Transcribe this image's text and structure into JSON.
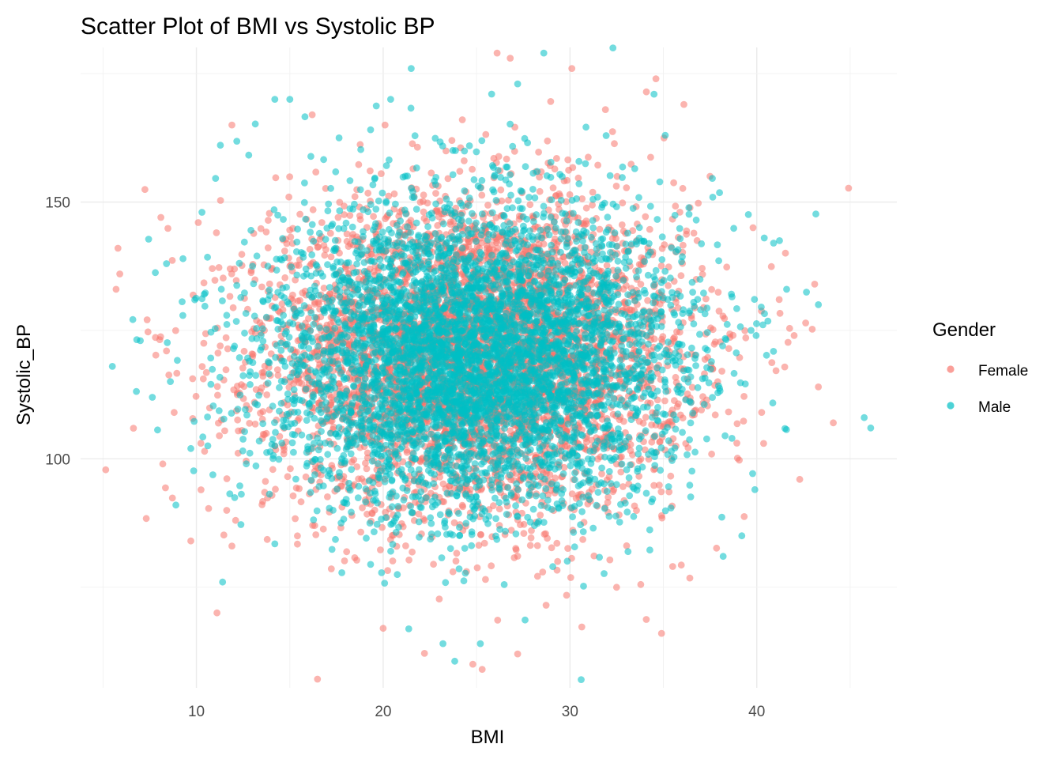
{
  "chart_data": {
    "type": "scatter",
    "title": "Scatter Plot of BMI vs Systolic BP",
    "xlabel": "BMI",
    "ylabel": "Systolic_BP",
    "xlim": [
      3.8,
      47.5
    ],
    "ylim": [
      55.4,
      180.1
    ],
    "x_ticks": [
      10,
      20,
      30,
      40
    ],
    "y_ticks": [
      100,
      150
    ],
    "x_tick_labels": [
      "10",
      "20",
      "30",
      "40"
    ],
    "y_tick_labels": [
      "100",
      "150"
    ],
    "grid": true,
    "legend": {
      "title": "Gender",
      "position": "right"
    },
    "series": [
      {
        "name": "Female",
        "color": "#F8766D",
        "opacity": 0.55,
        "distribution": {
          "x_mean": 25,
          "x_sd": 5.5,
          "y_mean": 120,
          "y_sd": 15,
          "n": 5000
        },
        "points": [
          [
            5.8,
            141
          ],
          [
            5.9,
            136
          ],
          [
            5.7,
            133
          ],
          [
            8.1,
            147
          ],
          [
            8.4,
            121
          ],
          [
            8.2,
            99
          ],
          [
            9.7,
            84
          ],
          [
            10.1,
            146
          ],
          [
            11.1,
            70
          ],
          [
            12.1,
            88
          ],
          [
            11.9,
            165
          ],
          [
            16.2,
            167
          ],
          [
            20.0,
            67
          ],
          [
            24.8,
            60
          ],
          [
            26.1,
            179
          ],
          [
            26.8,
            178
          ],
          [
            25.3,
            59
          ],
          [
            27.2,
            62
          ],
          [
            30.1,
            176
          ],
          [
            31.9,
            168
          ],
          [
            34.6,
            174
          ],
          [
            36.1,
            169
          ],
          [
            34.9,
            66
          ],
          [
            41.2,
            131
          ],
          [
            42.3,
            96
          ],
          [
            43.1,
            134
          ],
          [
            43.3,
            114
          ],
          [
            44.1,
            107
          ],
          [
            37.5,
            155
          ],
          [
            39.8,
            145
          ],
          [
            42.0,
            124
          ]
        ]
      },
      {
        "name": "Male",
        "color": "#00BFC4",
        "opacity": 0.55,
        "distribution": {
          "x_mean": 25,
          "x_sd": 5.5,
          "y_mean": 120,
          "y_sd": 15,
          "n": 5000
        },
        "points": [
          [
            5.5,
            118
          ],
          [
            7.0,
            123
          ],
          [
            8.4,
            138
          ],
          [
            8.9,
            91
          ],
          [
            9.7,
            102
          ],
          [
            10.3,
            148
          ],
          [
            11.4,
            76
          ],
          [
            14.2,
            170
          ],
          [
            15.0,
            170
          ],
          [
            20.4,
            170
          ],
          [
            21.5,
            176
          ],
          [
            23.2,
            64
          ],
          [
            25.2,
            64
          ],
          [
            27.2,
            173
          ],
          [
            28.6,
            179
          ],
          [
            30.6,
            57
          ],
          [
            32.3,
            180
          ],
          [
            34.5,
            171
          ],
          [
            35.1,
            163
          ],
          [
            38.2,
            81
          ],
          [
            39.2,
            85
          ],
          [
            39.9,
            94
          ],
          [
            40.4,
            143
          ],
          [
            40.9,
            142
          ],
          [
            41.6,
            133
          ],
          [
            43.3,
            130
          ],
          [
            46.1,
            106
          ],
          [
            32.5,
            95
          ]
        ]
      }
    ]
  }
}
